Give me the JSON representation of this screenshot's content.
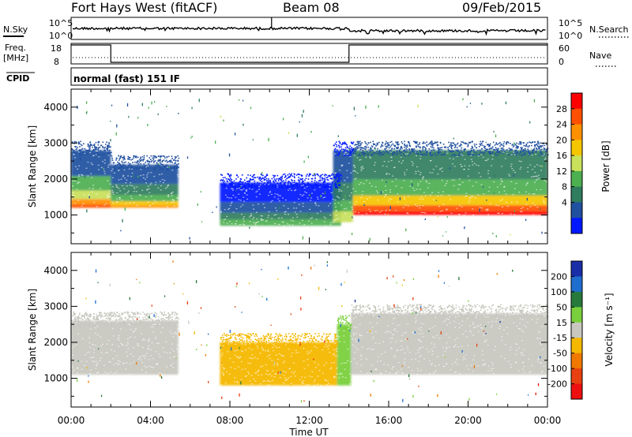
{
  "header": {
    "station": "Fort Hays West (fitACF)",
    "beam": "Beam 08",
    "date": "09/Feb/2015"
  },
  "nsky_panel": {
    "left_label": "N.Sky",
    "right_label": "N.Search",
    "ticks": [
      "10^5",
      "10^0"
    ],
    "right_ticks": [
      "10^5",
      "10^0"
    ]
  },
  "freq_panel": {
    "left_label_line1": "Freq.",
    "left_label_line2": "[MHz]",
    "right_label": "Nave",
    "left_ticks": [
      "18",
      "8"
    ],
    "right_ticks": [
      "60",
      "0"
    ]
  },
  "cpid_panel": {
    "label": "CPID",
    "text": "normal (fast) 151 IF"
  },
  "power_panel": {
    "ylabel": "Slant Range [km]",
    "colorbar_label": "Power [dB]",
    "colorbar_ticks": [
      "28",
      "24",
      "20",
      "16",
      "12",
      "8",
      "4"
    ],
    "colorbar_colors": [
      "#ff0000",
      "#ff5000",
      "#ff9000",
      "#f5c500",
      "#c8e05a",
      "#4caf50",
      "#2f7d5e",
      "#2050a0",
      "#0018ff"
    ]
  },
  "velocity_panel": {
    "ylabel": "Slant Range [km]",
    "colorbar_label": "Velocity [m s⁻¹]",
    "colorbar_ticks": [
      "200",
      "100",
      "50",
      "15",
      "-15",
      "-50",
      "-100",
      "-200"
    ],
    "colorbar_colors": [
      "#1a2ea8",
      "#1e6ed0",
      "#287a3c",
      "#7ad03c",
      "#c8c8c0",
      "#f5b800",
      "#f07800",
      "#e84010",
      "#ee1010"
    ]
  },
  "xaxis": {
    "label": "Time UT",
    "ticks": [
      "00:00",
      "04:00",
      "08:00",
      "12:00",
      "16:00",
      "20:00",
      "00:00"
    ]
  },
  "chart_data": [
    {
      "type": "heatmap",
      "title": "Power",
      "xlabel": "Time UT",
      "ylabel": "Slant Range [km]",
      "xlim": [
        0,
        24
      ],
      "ylim": [
        200,
        4500
      ],
      "yticks": [
        1000,
        2000,
        3000,
        4000
      ],
      "colorbar": {
        "label": "Power [dB]",
        "range": [
          0,
          30
        ],
        "ticks": [
          4,
          8,
          12,
          16,
          20,
          24,
          28
        ]
      },
      "echo_regions": [
        {
          "t_start": 0.0,
          "t_end": 2.0,
          "range_low": 1200,
          "range_high": 2800,
          "peak_power_db": 24
        },
        {
          "t_start": 2.0,
          "t_end": 5.4,
          "range_low": 1200,
          "range_high": 2400,
          "peak_power_db": 20
        },
        {
          "t_start": 7.5,
          "t_end": 13.6,
          "range_low": 700,
          "range_high": 1900,
          "peak_power_db": 12
        },
        {
          "t_start": 13.2,
          "t_end": 14.2,
          "range_low": 800,
          "range_high": 2800,
          "peak_power_db": 16
        },
        {
          "t_start": 14.2,
          "t_end": 24.0,
          "range_low": 1000,
          "range_high": 2800,
          "peak_power_db": 28
        }
      ]
    },
    {
      "type": "heatmap",
      "title": "Velocity",
      "xlabel": "Time UT",
      "ylabel": "Slant Range [km]",
      "xlim": [
        0,
        24
      ],
      "ylim": [
        200,
        4500
      ],
      "yticks": [
        1000,
        2000,
        3000,
        4000
      ],
      "colorbar": {
        "label": "Velocity [m s-1]",
        "range": [
          -250,
          250
        ],
        "ticks": [
          -200,
          -100,
          -50,
          -15,
          15,
          50,
          100,
          200
        ]
      },
      "echo_regions": [
        {
          "t_start": 0.0,
          "t_end": 5.4,
          "range_low": 1100,
          "range_high": 2600,
          "velocity": 0
        },
        {
          "t_start": 7.5,
          "t_end": 13.4,
          "range_low": 800,
          "range_high": 2000,
          "velocity": -40
        },
        {
          "t_start": 13.4,
          "t_end": 14.1,
          "range_low": 800,
          "range_high": 2500,
          "velocity": 30
        },
        {
          "t_start": 14.1,
          "t_end": 24.0,
          "range_low": 1100,
          "range_high": 2800,
          "velocity": 0
        }
      ]
    },
    {
      "type": "line",
      "title": "Frequency",
      "ylabel": "Freq. [MHz]",
      "ylim": [
        8,
        18
      ],
      "x": [
        0,
        2.0,
        2.0,
        14.0,
        14.0,
        24
      ],
      "values": [
        18,
        18,
        8,
        8,
        18,
        18
      ]
    }
  ]
}
